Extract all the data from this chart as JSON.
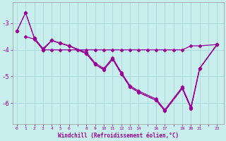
{
  "bg_color": "#c8eeed",
  "grid_color": "#a8d8d8",
  "line_color": "#990099",
  "xlabel": "Windchill (Refroidissement éolien,°C)",
  "ytick_positions": [
    -3,
    -4,
    -5,
    -6
  ],
  "ytick_labels": [
    "-3",
    "-4",
    "-5",
    "-6"
  ],
  "ylim": [
    -6.8,
    -2.2
  ],
  "xlim": [
    -0.5,
    23.8
  ],
  "series1_x": [
    0,
    1,
    2,
    3,
    4,
    5,
    6,
    8,
    9,
    10,
    11,
    12,
    13,
    14,
    16,
    17,
    19,
    20,
    21,
    23
  ],
  "series1_y": [
    -3.3,
    -2.6,
    -3.55,
    -3.95,
    -3.65,
    -3.75,
    -3.85,
    -4.1,
    -4.5,
    -4.7,
    -4.3,
    -4.85,
    -5.35,
    -5.55,
    -5.85,
    -6.25,
    -5.4,
    -6.15,
    -4.7,
    -3.8
  ],
  "series2_x": [
    0,
    1,
    2,
    3,
    4,
    5,
    6,
    8,
    9,
    10,
    11,
    12,
    13,
    14,
    16,
    17,
    19,
    20,
    21,
    23
  ],
  "series2_y": [
    -3.3,
    -2.6,
    -3.55,
    -4.0,
    -3.65,
    -3.75,
    -3.85,
    -4.15,
    -4.55,
    -4.75,
    -4.35,
    -4.9,
    -5.4,
    -5.6,
    -5.9,
    -6.3,
    -5.45,
    -6.2,
    -4.7,
    -3.8
  ],
  "series3_x": [
    1,
    2,
    3,
    4,
    5,
    6,
    8,
    9,
    10,
    11,
    12,
    13,
    14,
    16,
    17,
    19,
    20,
    21,
    23
  ],
  "series3_y": [
    -3.5,
    -3.6,
    -4.0,
    -3.65,
    -3.75,
    -3.85,
    -4.15,
    -4.55,
    -4.75,
    -4.35,
    -4.9,
    -5.4,
    -5.6,
    -5.9,
    -6.3,
    -5.45,
    -6.2,
    -4.7,
    -3.8
  ],
  "series4_x": [
    3,
    4,
    5,
    6,
    7,
    8,
    9,
    10,
    11,
    12,
    13,
    14,
    15,
    16,
    17,
    18,
    19,
    20,
    21,
    23
  ],
  "series4_y": [
    -4.0,
    -4.0,
    -4.0,
    -4.0,
    -4.0,
    -4.0,
    -4.0,
    -4.0,
    -4.0,
    -4.0,
    -4.0,
    -4.0,
    -4.0,
    -4.0,
    -4.0,
    -4.0,
    -4.0,
    -3.85,
    -3.85,
    -3.8
  ],
  "marker": "D",
  "markersize": 2.5,
  "linewidth": 0.9
}
